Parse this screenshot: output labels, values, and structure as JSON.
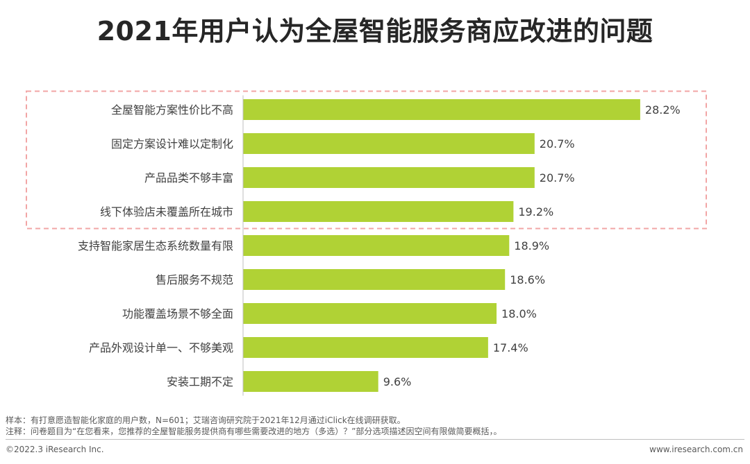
{
  "title": "2021年用户认为全屋智能服务商应改进的问题",
  "chart_data": {
    "type": "bar",
    "orientation": "horizontal",
    "categories": [
      "全屋智能方案性价比不高",
      "固定方案设计难以定制化",
      "产品品类不够丰富",
      "线下体验店未覆盖所在城市",
      "支持智能家居生态系统数量有限",
      "售后服务不规范",
      "功能覆盖场景不够全面",
      "产品外观设计单一、不够美观",
      "安装工期不定"
    ],
    "values": [
      28.2,
      20.7,
      20.7,
      19.2,
      18.9,
      18.6,
      18.0,
      17.4,
      9.6
    ],
    "value_labels": [
      "28.2%",
      "20.7%",
      "20.7%",
      "19.2%",
      "18.9%",
      "18.6%",
      "18.0%",
      "17.4%",
      "9.6%"
    ],
    "unit": "%",
    "xlim": [
      0,
      30
    ],
    "grid": false,
    "bar_color": "#b0d235",
    "highlight": {
      "style": "dashed-box",
      "color": "#f2a5a5",
      "categories_highlighted": 4
    }
  },
  "notes": {
    "sample": "样本：有打意愿造智能化家庭的用户数，N=601；艾瑞咨询研究院于2021年12月通过iClick在线调研获取。",
    "remark": "注释：问卷题目为“在您看来，您推荐的全屋智能服务提供商有哪些需要改进的地方（多选）？”部分选项描述因空间有限做简要概括，。"
  },
  "footer": {
    "copyright": "©2022.3 iResearch Inc.",
    "website": "www.iresearch.com.cn"
  }
}
